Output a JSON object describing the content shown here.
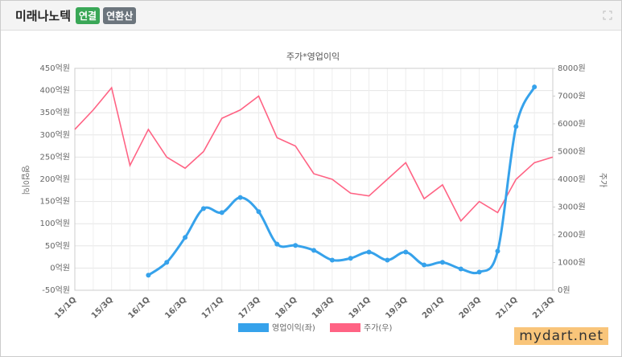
{
  "header": {
    "title": "미래나노텍",
    "badges": [
      "연결",
      "연환산"
    ]
  },
  "chart_data": {
    "type": "line",
    "title": "주가*영업이익",
    "y_label": "영업이익",
    "y2_label": "주가",
    "categories": [
      "15/1Q",
      null,
      "15/3Q",
      null,
      "16/1Q",
      null,
      "16/3Q",
      null,
      "17/1Q",
      null,
      "17/3Q",
      null,
      "18/1Q",
      null,
      "18/3Q",
      null,
      "19/1Q",
      null,
      "19/3Q",
      null,
      "20/1Q",
      null,
      "20/3Q",
      null,
      "21/1Q",
      null,
      "21/3Q"
    ],
    "series": [
      {
        "name": "영업이익(좌)",
        "color": "#36a2eb",
        "axis": "y",
        "values": [
          null,
          null,
          null,
          null,
          -16,
          13,
          69,
          134,
          125,
          159,
          127,
          54,
          51,
          40,
          18,
          22,
          36,
          18,
          36,
          7,
          13,
          -2,
          -9,
          38,
          319,
          408,
          null
        ]
      },
      {
        "name": "주가(우)",
        "color": "#ff6384",
        "axis": "y2",
        "values": [
          5800,
          6500,
          7300,
          4500,
          5800,
          4800,
          4400,
          5000,
          6200,
          6500,
          7000,
          5500,
          5200,
          4200,
          4000,
          3500,
          3400,
          4000,
          4600,
          3300,
          3800,
          2500,
          3200,
          2800,
          4000,
          4600,
          4800
        ]
      }
    ],
    "ylim": [
      -50,
      450
    ],
    "yticks": [
      {
        "value": -50,
        "label": "-50억원"
      },
      {
        "value": 0,
        "label": "0억원"
      },
      {
        "value": 50,
        "label": "50억원"
      },
      {
        "value": 100,
        "label": "100억원"
      },
      {
        "value": 150,
        "label": "150억원"
      },
      {
        "value": 200,
        "label": "200억원"
      },
      {
        "value": 250,
        "label": "250억원"
      },
      {
        "value": 300,
        "label": "300억원"
      },
      {
        "value": 350,
        "label": "350억원"
      },
      {
        "value": 400,
        "label": "400억원"
      },
      {
        "value": 450,
        "label": "450억원"
      }
    ],
    "y2lim": [
      0,
      8000
    ],
    "y2ticks": [
      {
        "value": 0,
        "label": "0원"
      },
      {
        "value": 1000,
        "label": "1000원"
      },
      {
        "value": 2000,
        "label": "2000원"
      },
      {
        "value": 3000,
        "label": "3000원"
      },
      {
        "value": 4000,
        "label": "4000원"
      },
      {
        "value": 5000,
        "label": "5000원"
      },
      {
        "value": 6000,
        "label": "6000원"
      },
      {
        "value": 7000,
        "label": "7000원"
      },
      {
        "value": 8000,
        "label": "8000원"
      }
    ],
    "grid": true
  },
  "watermark": "mydart.net"
}
